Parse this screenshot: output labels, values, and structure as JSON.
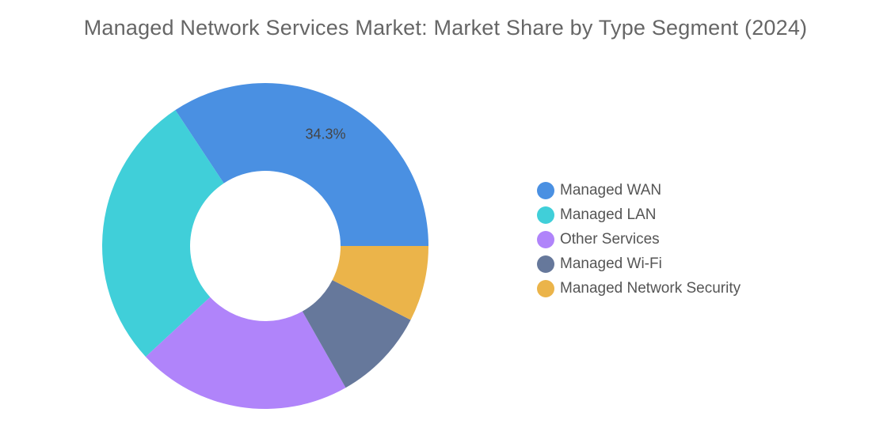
{
  "chart_data": {
    "type": "pie",
    "title": "Managed Network Services Market: Market Share by Type Segment (2024)",
    "categories": [
      "Managed WAN",
      "Managed LAN",
      "Other Services",
      "Managed Wi-Fi",
      "Managed Network Security"
    ],
    "values": [
      34.3,
      27.6,
      21.3,
      9.3,
      7.5
    ],
    "colors": [
      "#4A90E2",
      "#40CFD9",
      "#B084FA",
      "#66789B",
      "#EBB44A"
    ],
    "data_labels": [
      "34.3%",
      "",
      "",
      "",
      ""
    ],
    "donut": true,
    "legend_position": "right"
  }
}
